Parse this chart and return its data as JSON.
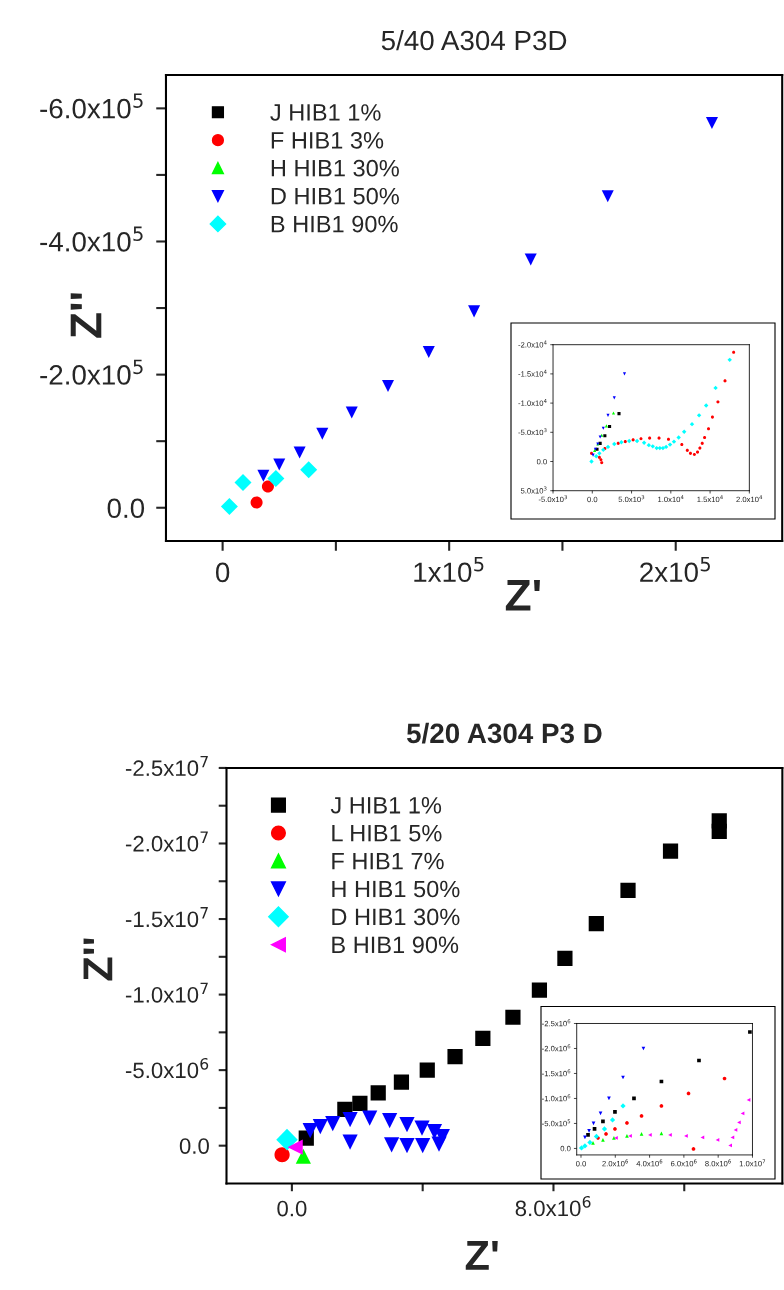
{
  "chart_data": [
    {
      "type": "scatter",
      "title": "5/40 A304 P3D",
      "xlabel": "Z'",
      "ylabel": "Z''",
      "legend": "top left",
      "xlim": [
        -25000,
        247000
      ],
      "ylim": [
        50000,
        -650000
      ],
      "xticks": [
        0,
        {
          "value": 50000,
          "label": null
        },
        {
          "value": 100000,
          "label": "1x10$^{5}$"
        },
        {
          "value": 150000,
          "label": null
        },
        {
          "value": 200000,
          "label": "2x10$^{5}$"
        }
      ],
      "yticks": [
        {
          "value": 0,
          "label": "0.0"
        },
        {
          "value": -100000,
          "label": null
        },
        {
          "value": -200000,
          "label": "-2.0x10$^{5}$"
        },
        {
          "value": -300000,
          "label": null
        },
        {
          "value": -400000,
          "label": "-4.0x10$^{5}$"
        },
        {
          "value": -500000,
          "label": null
        },
        {
          "value": -600000,
          "label": "-6.0x10$^{5}$"
        }
      ],
      "series": [
        {
          "name": "J HIB1 1%",
          "color": "#000000",
          "marker": "square"
        },
        {
          "name": "F HIB1 3%",
          "color": "#ff0000",
          "marker": "circle",
          "x": [
            20000,
            15000
          ],
          "values": [
            -32000,
            -8000
          ]
        },
        {
          "name": "H HIB1 30%",
          "color": "#00ff00",
          "marker": "triangle"
        },
        {
          "name": "D HIB1 50%",
          "color": "#0000ff",
          "marker": "triangle_down",
          "x": [
            216000,
            170000,
            136000,
            111000,
            91000,
            73000,
            57000,
            44000,
            34000,
            25000,
            18000
          ],
          "values": [
            -578000,
            -468000,
            -373000,
            -295000,
            -234000,
            -183000,
            -143000,
            -111000,
            -83000,
            -65000,
            -48000
          ]
        },
        {
          "name": "B HIB1 90%",
          "color": "#00ffff",
          "marker": "diamond",
          "x": [
            38000,
            23500,
            9000,
            3000
          ],
          "values": [
            -57000,
            -44000,
            -38000,
            -2000
          ]
        }
      ]
    },
    {
      "type": "scatter",
      "xlim": [
        -5000,
        20000
      ],
      "ylim": [
        5000,
        -20000
      ],
      "xticks": [
        {
          "value": -5000,
          "label": "-5.0x10$^{3}$"
        },
        {
          "value": 0,
          "label": "0.0"
        },
        {
          "value": 5000,
          "label": "5.0x10$^{3}$"
        },
        {
          "value": 10000,
          "label": "1.0x10$^{4}$"
        },
        {
          "value": 15000,
          "label": "1.5x10$^{4}$"
        },
        {
          "value": 20000,
          "label": "2.0x10$^{4}$"
        }
      ],
      "yticks": [
        {
          "value": 5000,
          "label": "5.0x10$^{3}$"
        },
        {
          "value": 0,
          "label": "0.0"
        },
        {
          "value": -5000,
          "label": "-5.0x10$^{3}$"
        },
        {
          "value": -10000,
          "label": "-1.0x10$^{4}$"
        },
        {
          "value": -15000,
          "label": "-1.5x10$^{4}$"
        },
        {
          "value": -20000,
          "label": "-2.0x10$^{4}$"
        }
      ],
      "series": [
        {
          "color": "#000000",
          "marker": "square",
          "x": [
            3400,
            2200,
            1600,
            1000,
            600
          ],
          "values": [
            -8200,
            -6000,
            -4400,
            -3100,
            -2100
          ]
        },
        {
          "color": "#ff0000",
          "marker": "circle",
          "x": [
            18000,
            16900,
            16000,
            15300,
            14800,
            14300,
            14000,
            13700,
            13400,
            13000,
            12500,
            12100,
            11400,
            9700,
            8500,
            7300,
            6200,
            5200,
            4200,
            3300,
            1600,
            900,
            1100,
            1200,
            -100
          ],
          "values": [
            -18700,
            -13800,
            -10200,
            -7600,
            -5600,
            -4100,
            -3100,
            -2300,
            -1600,
            -1200,
            -1400,
            -1900,
            -2900,
            -3800,
            -4000,
            -4000,
            -3900,
            -3700,
            -3400,
            -3100,
            -2200,
            -700,
            -300,
            200,
            -1400
          ]
        },
        {
          "color": "#00ff00",
          "marker": "triangle",
          "x": [
            2700,
            1800,
            1200,
            700,
            300
          ],
          "values": [
            -8300,
            -6100,
            -4500,
            -3000,
            -1900
          ]
        },
        {
          "color": "#0000ff",
          "marker": "triangle_down",
          "x": [
            4100,
            2800,
            2000,
            1400,
            1000,
            700,
            400,
            100
          ],
          "values": [
            -15000,
            -10900,
            -7900,
            -5700,
            -4200,
            -3000,
            -2100,
            -1100
          ]
        },
        {
          "color": "#00ffff",
          "marker": "diamond",
          "x": [
            17500,
            15700,
            14500,
            13600,
            12700,
            11700,
            11000,
            10400,
            9900,
            9400,
            9000,
            8600,
            8200,
            7700,
            7200,
            6600,
            5700,
            4700,
            3700,
            2800,
            2000,
            1400,
            900,
            500,
            -100
          ],
          "values": [
            -17400,
            -12600,
            -9600,
            -7900,
            -6400,
            -5100,
            -4100,
            -3400,
            -2900,
            -2500,
            -2300,
            -2300,
            -2300,
            -2600,
            -2800,
            -3200,
            -3500,
            -3500,
            -3300,
            -3000,
            -2500,
            -2000,
            -1400,
            -900,
            0
          ]
        }
      ]
    },
    {
      "type": "scatter",
      "title": "5/20 A304 P3 D",
      "xlabel": "Z'",
      "ylabel": "Z''",
      "legend": "top left",
      "xlim": [
        -2000000,
        15000000
      ],
      "ylim": [
        2500000,
        -25000000
      ],
      "xticks": [
        {
          "value": 0,
          "label": "0.0"
        },
        {
          "value": 4000000,
          "label": null
        },
        {
          "value": 8000000,
          "label": "8.0x10$^{6}$"
        },
        {
          "value": 12000000,
          "label": null
        }
      ],
      "yticks": [
        {
          "value": 0,
          "label": "0.0"
        },
        {
          "value": -2500000,
          "label": null
        },
        {
          "value": -5000000,
          "label": "-5.0x10$^{6}$"
        },
        {
          "value": -7500000,
          "label": null
        },
        {
          "value": -10000000,
          "label": "-1.0x10$^{7}$"
        },
        {
          "value": -12500000,
          "label": null
        },
        {
          "value": -15000000,
          "label": "-1.5x10$^{7}$"
        },
        {
          "value": -17500000,
          "label": null
        },
        {
          "value": -20000000,
          "label": "-2.0x10$^{7}$"
        },
        {
          "value": -22500000,
          "label": null
        },
        {
          "value": -25000000,
          "label": "-2.5x10$^{7}$"
        }
      ],
      "series": [
        {
          "name": "J HIB1 1%",
          "color": "#000000",
          "marker": "square",
          "x": [
            13070000,
            13070000,
            11580000,
            10280000,
            9310000,
            8350000,
            7570000,
            6760000,
            5840000,
            4990000,
            4140000,
            3350000,
            2640000,
            2080000,
            1620000,
            440000
          ],
          "values": [
            -21500000,
            -20800000,
            -19500000,
            -16900000,
            -14700000,
            -12400000,
            -10300000,
            -8500000,
            -7100000,
            -5900000,
            -5000000,
            -4200000,
            -3500000,
            -2800000,
            -2400000,
            -500000
          ]
        },
        {
          "name": "L HIB1 5%",
          "color": "#ff0000",
          "marker": "circle",
          "x": [
            -300000
          ],
          "values": [
            600000
          ]
        },
        {
          "name": "F HIB1 7%",
          "color": "#00ff00",
          "marker": "triangle",
          "x": [
            350000
          ],
          "values": [
            700000
          ]
        },
        {
          "name": "H HIB1 50%",
          "color": "#0000ff",
          "marker": "triangle_down",
          "x": [
            560000,
            870000,
            1250000,
            1780000,
            2380000,
            2990000,
            3520000,
            3980000,
            4360000,
            4600000,
            4500000,
            4000000,
            3520000,
            3050000,
            1780000
          ],
          "values": [
            -990000,
            -1260000,
            -1460000,
            -1720000,
            -1820000,
            -1660000,
            -1390000,
            -1160000,
            -930000,
            -600000,
            -100000,
            0,
            0,
            -50000,
            -230000
          ]
        },
        {
          "name": "D HIB1 30%",
          "color": "#00ffff",
          "marker": "diamond",
          "x": [
            -150000
          ],
          "values": [
            -400000
          ]
        },
        {
          "name": "B HIB1 90%",
          "color": "#ff00ff",
          "marker": "triangle_left",
          "x": [
            100000
          ],
          "values": [
            100000
          ]
        }
      ]
    },
    {
      "type": "scatter",
      "xlim": [
        -250000,
        10000000
      ],
      "ylim": [
        130000,
        -2500000
      ],
      "xticks": [
        {
          "value": 0,
          "label": "0.0"
        },
        {
          "value": 2000000,
          "label": "2.0x10$^{6}$"
        },
        {
          "value": 4000000,
          "label": "4.0x10$^{6}$"
        },
        {
          "value": 6000000,
          "label": "6.0x10$^{6}$"
        },
        {
          "value": 8000000,
          "label": "8.0x10$^{6}$"
        },
        {
          "value": 10000000,
          "label": "1.0x10$^{7}$"
        }
      ],
      "yticks": [
        {
          "value": 0,
          "label": "0.0"
        },
        {
          "value": -500000,
          "label": "-5.0x10$^{5}$"
        },
        {
          "value": -1000000,
          "label": "-1.0x10$^{6}$"
        },
        {
          "value": -1500000,
          "label": "-1.5x10$^{6}$"
        },
        {
          "value": -2000000,
          "label": "-2.0x10$^{6}$"
        },
        {
          "value": -2500000,
          "label": "-2.5x10$^{6}$"
        }
      ],
      "series": [
        {
          "color": "#000000",
          "marker": "square",
          "x": [
            9850000,
            6880000,
            4690000,
            3090000,
            1980000,
            1280000,
            790000,
            410000
          ],
          "values": [
            -2330000,
            -1760000,
            -1340000,
            -1000000,
            -730000,
            -540000,
            -390000,
            -270000
          ]
        },
        {
          "color": "#ff0000",
          "marker": "circle",
          "x": [
            8370000,
            6270000,
            4690000,
            3530000,
            2680000,
            1980000,
            1460000,
            990000,
            6560000
          ],
          "values": [
            -1400000,
            -1100000,
            -850000,
            -650000,
            -510000,
            -390000,
            -290000,
            -210000,
            10000
          ]
        },
        {
          "color": "#00ff00",
          "marker": "triangle",
          "x": [
            4690000,
            3530000,
            2680000,
            1920000,
            1280000,
            700000
          ],
          "values": [
            -300000,
            -290000,
            -250000,
            -210000,
            -170000,
            -110000
          ]
        },
        {
          "color": "#0000ff",
          "marker": "triangle_down",
          "x": [
            3640000,
            2450000,
            1630000,
            1140000,
            730000,
            470000,
            230000
          ],
          "values": [
            -2000000,
            -1420000,
            -1000000,
            -700000,
            -500000,
            -350000,
            -220000
          ]
        },
        {
          "color": "#00ffff",
          "marker": "diamond",
          "x": [
            2450000,
            1840000,
            1370000,
            900000,
            520000,
            230000,
            30000
          ],
          "values": [
            -850000,
            -570000,
            -390000,
            -240000,
            -120000,
            -50000,
            -10000
          ]
        },
        {
          "color": "#ff00ff",
          "marker": "triangle_left",
          "x": [
            9770000,
            9420000,
            9210000,
            9010000,
            8830000,
            8700000,
            7960000,
            7080000,
            6120000,
            5190000,
            4020000,
            2860000,
            2040000
          ],
          "values": [
            -970000,
            -700000,
            -520000,
            -370000,
            -220000,
            -60000,
            -170000,
            -220000,
            -250000,
            -270000,
            -270000,
            -250000,
            -210000
          ]
        }
      ]
    }
  ]
}
